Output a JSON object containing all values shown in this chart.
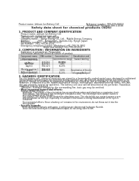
{
  "bg_color": "#ffffff",
  "header_left": "Product name: Lithium Ion Battery Cell",
  "header_right_line1": "Reference number: 980-049-00010",
  "header_right_line2": "Established / Revision: Dec.1.2016",
  "title": "Safety data sheet for chemical products (SDS)",
  "section1_title": "1. PRODUCT AND COMPANY IDENTIFICATION",
  "section1_items": [
    "· Product name: Lithium Ion Battery Cell",
    "· Product code: Cylindrical-type cell",
    "   SNY-8800U, SNY-8850U, SNY-8850A",
    "· Company name:    Sanyo Energy Co., Ltd.,  Mobile Energy Company",
    "· Address:           2001,  Kaminaizen,  Sumoto-City, Hyogo, Japan",
    "· Telephone number:   +81-799-26-4111",
    "· Fax number:  +81-799-26-4120",
    "· Emergency telephone number (Weekdays) +81-799-26-3862",
    "                                  (Night and holiday) +81-799-26-4121"
  ],
  "section2_title": "2. COMPOSITION / INFORMATION ON INGREDIENTS",
  "section2_sub1": "· Substance or preparation: Preparation",
  "section2_sub2": "· Information about the chemical nature of product:",
  "table_col_headers": [
    "Component name\n(General name)",
    "CAS number",
    "Concentration /\nConcentration range\n(10-90%)",
    "Classification and\nhazard labeling"
  ],
  "table_rows": [
    [
      "Lithium cobalt oxide\n(LiMn/CoO₂)",
      "-",
      "",
      ""
    ],
    [
      "Iron",
      "7439-89-6",
      "15-25%",
      "-"
    ],
    [
      "Aluminum",
      "7429-90-5",
      "2-8%",
      "-"
    ],
    [
      "Graphite\n(Metal in graphite-1\n(A/Be on graphite))",
      "7782-42-5\n7782-44-9",
      "10-25%",
      ""
    ],
    [
      "Copper",
      "7440-50-8",
      "5-10%",
      "Sensitization of the skin\ngroup No.2"
    ],
    [
      "Organic electrolyte",
      "-",
      "10-25%",
      "Inflammation liquid"
    ]
  ],
  "section3_title": "3. HAZARDS IDENTIFICATION",
  "section3_lines": [
    "For this battery cell, chemical materials are stored in a hermetically sealed metal case, designed to withstand",
    "temperatures and pressure-encountered during common use. As a result, during normal use, there is no",
    "physical change of condition by expansion and batteries should be free of leakage or electrolyte leakage.",
    "However, if exposed to a fire, added mechanical shocks, overcharged, abnormal external stress, mis-use,",
    "the gas releases ventral (or operates). The battery cell case will be breached at the perforate. Hazardous",
    "materials may be released.",
    "   Moreover, if heated strongly by the surrounding fire, toxic gas may be emitted."
  ],
  "bullet1_title": "· Most important hazard and effects:",
  "bullet1_sub": "Human health effects:",
  "bullet1_items": [
    "   Inhalation: The release of the electrolyte has an anesthesia action and stimulates a respiratory tract.",
    "   Skin contact: The release of the electrolyte stimulates a skin. The electrolyte skin contact causes a",
    "   sore and stimulation on the skin.",
    "   Eye contact: The release of the electrolyte stimulates eyes. The electrolyte eye contact causes a sore",
    "   and stimulation on the eye. Especially, a substance that causes a strong inflammation of the eyes is",
    "   contained.",
    "",
    "   Environmental effects: Since a battery cell remains in the environment, do not throw out it into the",
    "   environment."
  ],
  "bullet2_title": "· Specific hazards:",
  "bullet2_items": [
    "   If the electrolyte contacts with water, it will generate detrimental hydrogen fluoride.",
    "   Since the heat electrolyte is inflammation liquid, do not bring close to fire."
  ],
  "text_color": "#222222",
  "line_color": "#aaaaaa",
  "table_header_bg": "#d0d0d0",
  "table_alt_bg": "#f0f0f0"
}
